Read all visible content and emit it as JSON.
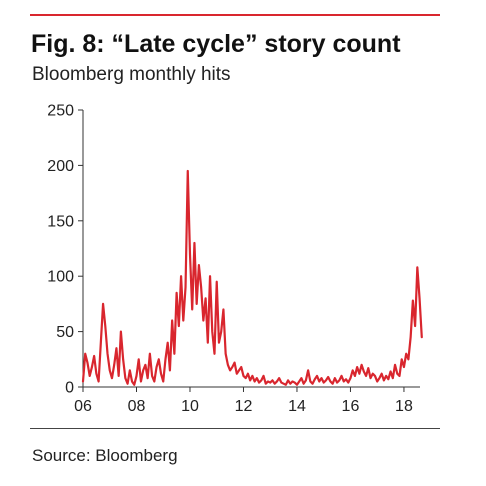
{
  "figure": {
    "title": "Fig. 8: “Late cycle” story count",
    "subtitle": "Bloomberg monthly hits",
    "source": "Source: Bloomberg",
    "accent_color": "#d9262e"
  },
  "chart_data": {
    "type": "line",
    "title": "Fig. 8: “Late cycle” story count",
    "subtitle": "Bloomberg monthly hits",
    "xlabel": "",
    "ylabel": "",
    "xlim": [
      2006,
      2018.6
    ],
    "ylim": [
      0,
      250
    ],
    "x_ticks": [
      {
        "value": 2006,
        "label": "06"
      },
      {
        "value": 2008,
        "label": "08"
      },
      {
        "value": 2010,
        "label": "10"
      },
      {
        "value": 2012,
        "label": "12"
      },
      {
        "value": 2014,
        "label": "14"
      },
      {
        "value": 2016,
        "label": "16"
      },
      {
        "value": 2018,
        "label": "18"
      }
    ],
    "y_ticks": [
      0,
      50,
      100,
      150,
      200,
      250
    ],
    "grid": false,
    "line_color": "#d9262e",
    "series": [
      {
        "name": "",
        "start": 2006,
        "step_months": 1,
        "values": [
          5,
          30,
          22,
          10,
          18,
          28,
          12,
          5,
          40,
          75,
          55,
          30,
          15,
          8,
          20,
          35,
          10,
          50,
          25,
          8,
          3,
          15,
          5,
          2,
          10,
          25,
          5,
          15,
          20,
          8,
          30,
          10,
          5,
          18,
          25,
          12,
          5,
          25,
          40,
          15,
          60,
          30,
          85,
          55,
          100,
          60,
          90,
          195,
          120,
          70,
          130,
          75,
          110,
          90,
          60,
          80,
          40,
          100,
          50,
          30,
          95,
          40,
          50,
          70,
          30,
          20,
          15,
          18,
          22,
          12,
          15,
          18,
          10,
          8,
          12,
          6,
          10,
          5,
          8,
          4,
          6,
          10,
          3,
          5,
          4,
          6,
          3,
          5,
          8,
          4,
          3,
          2,
          6,
          3,
          5,
          4,
          2,
          5,
          8,
          3,
          6,
          15,
          5,
          3,
          7,
          10,
          5,
          8,
          4,
          6,
          9,
          5,
          3,
          8,
          4,
          6,
          10,
          5,
          7,
          4,
          8,
          15,
          10,
          18,
          12,
          20,
          14,
          10,
          17,
          8,
          12,
          10,
          5,
          8,
          12,
          6,
          10,
          7,
          14,
          8,
          20,
          12,
          10,
          25,
          18,
          30,
          25,
          45,
          78,
          55,
          108,
          80,
          45
        ]
      }
    ]
  }
}
